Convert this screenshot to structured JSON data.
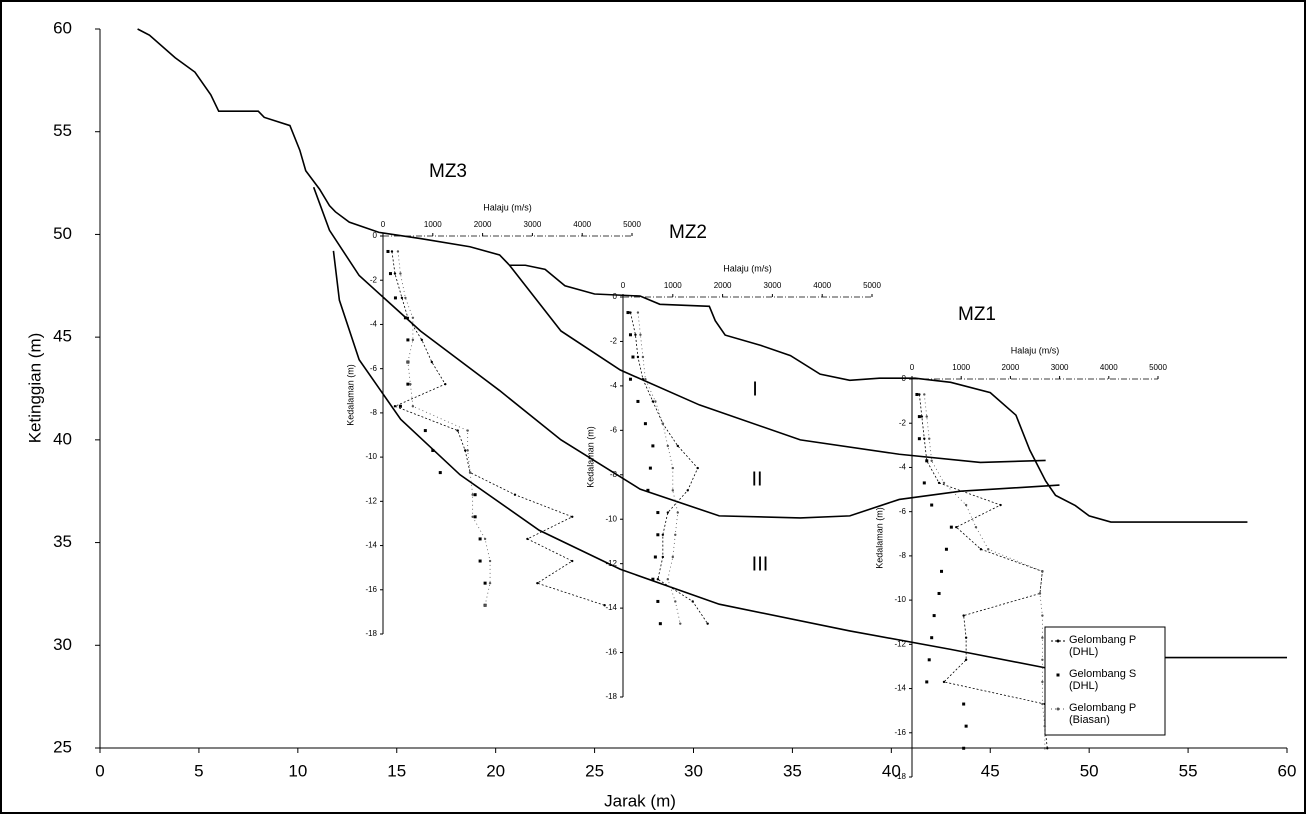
{
  "chart_data": [
    {
      "type": "line",
      "x_label": "Jarak (m)",
      "y_label": "Ketinggian (m)",
      "xlim": [
        0,
        60
      ],
      "ylim": [
        25,
        60
      ],
      "xticks": [
        0,
        5,
        10,
        15,
        20,
        25,
        30,
        35,
        40,
        45,
        50,
        55,
        60
      ],
      "yticks": [
        25,
        30,
        35,
        40,
        45,
        50,
        55,
        60
      ],
      "annotations": [
        "I",
        "II",
        "III"
      ],
      "series": [
        {
          "color": "#000000",
          "x": [
            1.9,
            2.5,
            3.8,
            4.8,
            5.6,
            6.0,
            8.0,
            8.3,
            9.6,
            10.1,
            10.4,
            11.1,
            11.6,
            11.9,
            12.6,
            14.1,
            16.2,
            18.7,
            20.2,
            20.7,
            21.5,
            22.5,
            23.5,
            25.0,
            27.3,
            28.3,
            30.8,
            31.1,
            31.6,
            33.4,
            34.9,
            36.4,
            37.9,
            39.4,
            41.2,
            43.0,
            45.0,
            46.3,
            47.0,
            47.8,
            48.3,
            49.3,
            50.0,
            51.1,
            55.6,
            58.0
          ],
          "values": [
            60.0,
            59.7,
            58.6,
            57.9,
            56.8,
            56.0,
            56.0,
            55.7,
            55.3,
            54.1,
            53.1,
            52.2,
            51.4,
            51.1,
            50.6,
            50.1,
            49.8,
            49.4,
            49.0,
            48.5,
            48.5,
            48.3,
            47.5,
            47.1,
            47.0,
            46.6,
            46.5,
            45.8,
            45.1,
            44.6,
            44.1,
            43.2,
            42.9,
            43.0,
            43.0,
            42.8,
            42.3,
            41.2,
            39.5,
            38.0,
            37.3,
            36.8,
            36.3,
            36.0,
            36.0,
            36.0
          ]
        },
        {
          "color": "#000000",
          "x": [
            20.7,
            23.3,
            26.3,
            30.3,
            35.4,
            40.4,
            44.5,
            47.8
          ],
          "values": [
            48.5,
            45.3,
            43.4,
            41.7,
            40.0,
            39.3,
            38.9,
            39.0
          ]
        },
        {
          "color": "#000000",
          "x": [
            10.8,
            11.6,
            13.1,
            16.2,
            20.2,
            23.3,
            27.3,
            31.3,
            35.4,
            37.9,
            40.4,
            43.5,
            48.5
          ],
          "values": [
            52.3,
            50.2,
            48.0,
            45.3,
            42.4,
            40.0,
            37.6,
            36.3,
            36.2,
            36.3,
            37.1,
            37.5,
            37.8
          ]
        },
        {
          "color": "#000000",
          "x": [
            11.8,
            12.1,
            13.1,
            15.2,
            18.2,
            22.2,
            26.3,
            31.3,
            37.9,
            43.0,
            47.8
          ],
          "values": [
            49.2,
            46.8,
            43.9,
            41.0,
            38.3,
            35.6,
            33.7,
            32.0,
            30.7,
            29.8,
            28.9
          ]
        },
        {
          "color": "#000000",
          "x": [
            49.0,
            60.0
          ],
          "values": [
            29.4,
            29.4
          ]
        }
      ]
    },
    {
      "type": "profile",
      "title": "MZ3",
      "x_label": "Halaju (m/s)",
      "y_label": "Kedalaman (m)",
      "xlim": [
        0,
        5000
      ],
      "ylim": [
        -18,
        0
      ],
      "xticks": [
        0,
        1000,
        2000,
        3000,
        4000,
        5000
      ],
      "yticks": [
        0,
        -2,
        -4,
        -6,
        -8,
        -10,
        -12,
        -14,
        -16,
        -18
      ],
      "y": [
        -0.7,
        -1.7,
        -2.8,
        -3.7,
        -4.7,
        -5.7,
        -6.7,
        -7.7,
        -8.8,
        -9.7,
        -10.7,
        -11.7,
        -12.7,
        -13.7,
        -14.7,
        -15.7,
        -16.7
      ],
      "series": [
        {
          "color": "#000000",
          "values": [
            180,
            240,
            380,
            500,
            780,
            980,
            1250,
            240,
            1500,
            1650,
            1750,
            2650,
            3800,
            2900,
            3800,
            3100,
            4450
          ]
        },
        {
          "color": "#000000",
          "values": [
            100,
            150,
            250,
            450,
            500,
            500,
            500,
            350,
            850,
            1000,
            1150,
            1850,
            1850,
            1950,
            1950,
            2050,
            2050
          ]
        },
        {
          "color": "#555555",
          "values": [
            300,
            350,
            450,
            600,
            600,
            500,
            550,
            600,
            1700,
            1700,
            1750,
            1800,
            1800,
            2050,
            2150,
            2150,
            2050
          ]
        }
      ]
    },
    {
      "type": "profile",
      "title": "MZ2",
      "x_label": "Halaju (m/s)",
      "y_label": "Kedalaman (m)",
      "xlim": [
        0,
        5000
      ],
      "ylim": [
        -18,
        0
      ],
      "xticks": [
        0,
        1000,
        2000,
        3000,
        4000,
        5000
      ],
      "yticks": [
        0,
        -2,
        -4,
        -6,
        -8,
        -10,
        -12,
        -14,
        -16,
        -18
      ],
      "y": [
        -0.7,
        -1.7,
        -2.7,
        -3.7,
        -4.7,
        -5.7,
        -6.7,
        -7.7,
        -8.7,
        -9.7,
        -10.7,
        -11.7,
        -12.7,
        -13.7,
        -14.7
      ],
      "series": [
        {
          "color": "#000000",
          "values": [
            150,
            250,
            300,
            400,
            600,
            800,
            1100,
            1500,
            1300,
            900,
            800,
            800,
            700,
            1400,
            1700
          ]
        },
        {
          "color": "#000000",
          "values": [
            100,
            150,
            200,
            150,
            300,
            450,
            600,
            550,
            500,
            700,
            700,
            650,
            600,
            700,
            750
          ]
        },
        {
          "color": "#555555",
          "values": [
            300,
            350,
            400,
            450,
            650,
            800,
            900,
            1000,
            1000,
            1100,
            1050,
            1000,
            900,
            1050,
            1150
          ]
        }
      ]
    },
    {
      "type": "profile",
      "title": "MZ1",
      "x_label": "Halaju (m/s)",
      "y_label": "Kedalaman (m)",
      "xlim": [
        0,
        5000
      ],
      "ylim": [
        -18,
        0
      ],
      "xticks": [
        0,
        1000,
        2000,
        3000,
        4000,
        5000
      ],
      "yticks": [
        0,
        -2,
        -4,
        -6,
        -8,
        -10,
        -12,
        -14,
        -16,
        -18
      ],
      "y": [
        -0.7,
        -1.7,
        -2.7,
        -3.7,
        -4.7,
        -5.7,
        -6.7,
        -7.7,
        -8.7,
        -9.7,
        -10.7,
        -11.7,
        -12.7,
        -13.7,
        -14.7,
        -15.7,
        -16.7
      ],
      "series": [
        {
          "name": "Gelombang P (DHL)",
          "color": "#000000",
          "values": [
            150,
            200,
            250,
            300,
            550,
            1800,
            900,
            1400,
            2650,
            2600,
            1050,
            1100,
            1100,
            650,
            2700,
            2700,
            2750
          ]
        },
        {
          "name": "Gelombang S (DHL)",
          "color": "#000000",
          "values": [
            100,
            150,
            150,
            300,
            250,
            400,
            800,
            700,
            600,
            550,
            450,
            400,
            350,
            300,
            1050,
            1100,
            1050
          ]
        },
        {
          "name": "Gelombang P (Biasan)",
          "color": "#555555",
          "values": [
            250,
            300,
            350,
            400,
            650,
            1100,
            1300,
            1550,
            2650,
            2600,
            2650,
            2650,
            2650,
            2650,
            2650,
            2700,
            2700
          ]
        }
      ]
    }
  ]
}
